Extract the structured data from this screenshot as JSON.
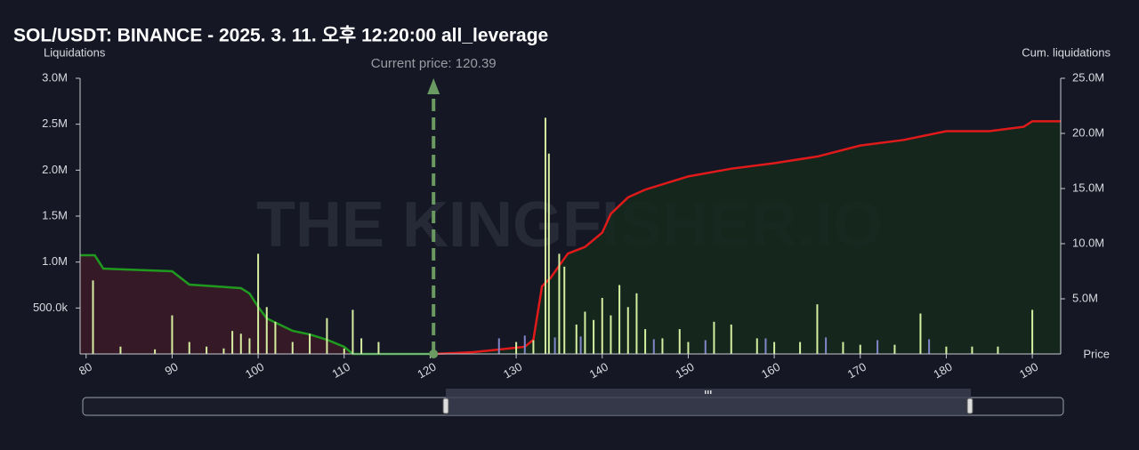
{
  "chart_data": {
    "type": "bar",
    "title": "SOL/USDT: BINANCE - 2025. 3. 11. 오후 12:20:00 all_leverage",
    "y_label": "Liquidations",
    "y2_label": "Cum. liquidations",
    "x_label": "Price",
    "watermark": "THE KINGFISHER.IO",
    "annotation": {
      "text": "Current price: 120.39",
      "x": 120.39,
      "color": "#6a9a62"
    },
    "xlim": [
      79.3,
      193.3
    ],
    "xticks": [
      80,
      90,
      100,
      110,
      120,
      130,
      140,
      150,
      160,
      170,
      180,
      190
    ],
    "ylim": [
      0,
      3000000
    ],
    "yticks": [
      {
        "value": 500000,
        "label": "500.0k"
      },
      {
        "value": 1000000,
        "label": "1.0M"
      },
      {
        "value": 1500000,
        "label": "1.5M"
      },
      {
        "value": 2000000,
        "label": "2.0M"
      },
      {
        "value": 2500000,
        "label": "2.5M"
      },
      {
        "value": 3000000,
        "label": "3.0M"
      }
    ],
    "y2lim": [
      0,
      25000000
    ],
    "y2ticks": [
      {
        "value": 5000000,
        "label": "5.0M"
      },
      {
        "value": 10000000,
        "label": "10.0M"
      },
      {
        "value": 15000000,
        "label": "15.0M"
      },
      {
        "value": 20000000,
        "label": "20.0M"
      },
      {
        "value": 25000000,
        "label": "25.0M"
      }
    ],
    "series": [
      {
        "type": "bar",
        "color": "#d6eea0",
        "x": [
          80.8,
          84,
          88,
          90,
          92,
          94,
          96,
          97,
          98,
          99,
          100,
          101,
          102,
          104,
          106,
          108,
          110,
          111,
          112,
          114,
          130,
          132,
          133.4,
          133.8,
          135,
          135.6,
          137,
          138,
          139,
          140,
          141,
          142,
          143,
          144,
          145,
          147,
          149,
          150,
          153,
          155,
          158,
          160,
          163,
          165,
          168,
          170,
          174,
          177,
          180,
          183,
          186,
          190
        ],
        "values": [
          800000,
          80000,
          50000,
          420000,
          130000,
          80000,
          60000,
          250000,
          220000,
          170000,
          1090000,
          510000,
          350000,
          130000,
          220000,
          390000,
          60000,
          480000,
          170000,
          130000,
          130000,
          150000,
          2570000,
          2180000,
          1090000,
          950000,
          320000,
          460000,
          370000,
          610000,
          420000,
          750000,
          510000,
          660000,
          270000,
          170000,
          270000,
          130000,
          350000,
          320000,
          170000,
          130000,
          130000,
          540000,
          130000,
          100000,
          100000,
          440000,
          80000,
          80000,
          80000,
          480000
        ]
      },
      {
        "type": "bar",
        "color": "#7f86c9",
        "x": [
          128,
          131,
          134.5,
          137.5,
          146,
          152,
          159,
          166,
          172,
          178
        ],
        "values": [
          170000,
          200000,
          180000,
          190000,
          160000,
          150000,
          170000,
          180000,
          150000,
          160000
        ]
      },
      {
        "type": "line",
        "axis": "y2",
        "color": "#1f9a1f",
        "fill": "#3a1a27",
        "x": [
          79.3,
          81,
          82,
          90,
          92,
          98,
          99,
          100,
          101,
          104,
          106,
          108,
          110,
          111,
          120.39
        ],
        "values": [
          8950000,
          8950000,
          7740000,
          7500000,
          6290000,
          5970000,
          5480000,
          4270000,
          3230000,
          2100000,
          1770000,
          1290000,
          650000,
          0,
          0
        ]
      },
      {
        "type": "line",
        "axis": "y2",
        "color": "#e01a1a",
        "fill": "#15281d",
        "x": [
          120.39,
          125,
          128,
          131,
          132,
          133,
          134,
          136,
          138,
          140,
          141,
          143,
          145,
          150,
          155,
          160,
          165,
          170,
          175,
          180,
          185,
          189,
          190,
          193.3
        ],
        "values": [
          0,
          160000,
          400000,
          650000,
          1290000,
          6130000,
          6900000,
          9100000,
          9700000,
          11000000,
          12700000,
          14200000,
          14900000,
          16100000,
          16800000,
          17300000,
          17900000,
          18900000,
          19400000,
          20200000,
          20200000,
          20600000,
          21100000,
          21100000
        ]
      }
    ]
  }
}
